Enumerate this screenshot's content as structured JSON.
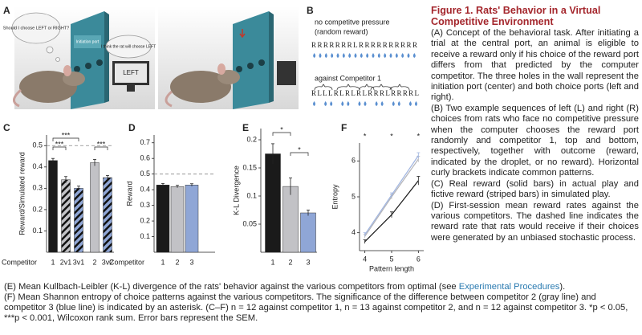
{
  "figure": {
    "panel_labels": [
      "A",
      "B",
      "C",
      "D",
      "E",
      "F"
    ],
    "panel_a": {
      "thought": "Should I choose LEFT or RIGHT?",
      "port": "Initiation port",
      "computer_thought": "I think the rat will choose LEFT",
      "screen": "LEFT"
    },
    "panel_b": {
      "random_title": "no competitve pressure",
      "random_subtitle": "(random reward)",
      "random_sequence": "RRRRRRRLRRRRRRRRRR",
      "competitor_title": "against Competitor 1",
      "competitor_sequence": "RLLLRLRLRLRRRLRRRRL"
    }
  },
  "chart_data": [
    {
      "type": "bar",
      "ylabel": "Reward/Simulated reward",
      "xlabel": "Competitor",
      "categories": [
        "1",
        "2v1",
        "3v1",
        "2",
        "3v2"
      ],
      "values": [
        0.43,
        0.34,
        0.3,
        0.42,
        0.35
      ],
      "errors": [
        0.01,
        0.015,
        0.01,
        0.015,
        0.01
      ],
      "colors": [
        "#1a1a1a",
        "#c2c2c6",
        "#8fa6d6",
        "#c2c2c6",
        "#8fa6d6"
      ],
      "striped": [
        false,
        true,
        true,
        false,
        true
      ],
      "ylim": [
        0,
        0.55
      ],
      "yticks": [
        0.1,
        0.2,
        0.3,
        0.4,
        0.5
      ],
      "reference_line": 0.5,
      "annotations": [
        "***",
        "***",
        "***"
      ]
    },
    {
      "type": "bar",
      "ylabel": "Reward",
      "xlabel": "Competitor",
      "categories": [
        "1",
        "2",
        "3"
      ],
      "values": [
        0.43,
        0.42,
        0.43
      ],
      "errors": [
        0.01,
        0.008,
        0.008
      ],
      "colors": [
        "#1a1a1a",
        "#c2c2c6",
        "#8fa6d6"
      ],
      "striped": [
        false,
        false,
        false
      ],
      "ylim": [
        0,
        0.75
      ],
      "yticks": [
        0.1,
        0.2,
        0.3,
        0.4,
        0.5,
        0.6,
        0.7
      ],
      "reference_line": 0.5
    },
    {
      "type": "bar",
      "ylabel": "K-L Divergence",
      "categories": [
        "1",
        "2",
        "3"
      ],
      "values": [
        0.175,
        0.117,
        0.07
      ],
      "errors": [
        0.018,
        0.015,
        0.005
      ],
      "colors": [
        "#1a1a1a",
        "#c2c2c6",
        "#8fa6d6"
      ],
      "striped": [
        false,
        false,
        false
      ],
      "ylim": [
        0,
        0.22
      ],
      "yticks": [
        0.05,
        0.1,
        0.15,
        0.2
      ],
      "annotations": [
        "*",
        "*"
      ]
    },
    {
      "type": "line",
      "ylabel": "Entropy",
      "xlabel": "Pattern length",
      "x": [
        4,
        5,
        6
      ],
      "xlim": [
        3.8,
        6.2
      ],
      "xticks": [
        4,
        5,
        6
      ],
      "ylim": [
        3.5,
        6.5
      ],
      "yticks": [
        4,
        5,
        6
      ],
      "series": [
        {
          "color": "#1a1a1a",
          "values": [
            3.75,
            4.5,
            5.45
          ],
          "errors": [
            0.05,
            0.08,
            0.12
          ]
        },
        {
          "color": "#b4b4b8",
          "values": [
            3.9,
            5.0,
            6.05
          ],
          "errors": [
            0.05,
            0.06,
            0.08
          ]
        },
        {
          "color": "#9fb4e0",
          "values": [
            3.95,
            5.05,
            6.15
          ],
          "errors": [
            0.05,
            0.06,
            0.08
          ]
        }
      ],
      "annotations": [
        "*",
        "*",
        "*"
      ]
    }
  ],
  "caption": {
    "title": "Figure 1. Rats' Behavior in a Virtual Competitive Environment",
    "paragraphs": [
      "(A) Concept of the behavioral task. After initiating a trial at the central port, an animal is eligible to receive a reward only if his choice of the reward port differs from that predicted by the computer competitor. The three holes in the wall represent the initiation port (center) and both choice ports (left and right).",
      "(B) Two example sequences of left (L) and right (R) choices from rats who face no competitive pressure when the computer chooses the reward port randomly and competitor 1, top and bottom, respectively, together with outcome (reward, indicated by the droplet, or no reward). Horizontal curly brackets indicate common patterns.",
      "(C) Real reward (solid bars) in actual play and fictive reward (striped bars) in simulated play.",
      "(D) First-session mean reward rates against the various competitors. The dashed line indicates the reward rate that rats would receive if their choices were generated by an unbiased stochastic process."
    ],
    "e": {
      "before": "(E) Mean Kullbach-Leibler (K-L) divergence of the rats' behavior against the various competitors from optimal (see ",
      "link": "Experimental Procedures",
      "after": ")."
    },
    "f": "(F) Mean Shannon entropy of choice patterns against the various competitors. The significance of the difference between competitor 2 (gray line) and competitor 3 (blue line) is indicated by an asterisk. (C–F) n = 12 against competitor 1, n = 13 against competitor 2, and n = 12 against competitor 3. *p < 0.05, ***p < 0.001, Wilcoxon rank sum. Error bars represent the SEM."
  }
}
